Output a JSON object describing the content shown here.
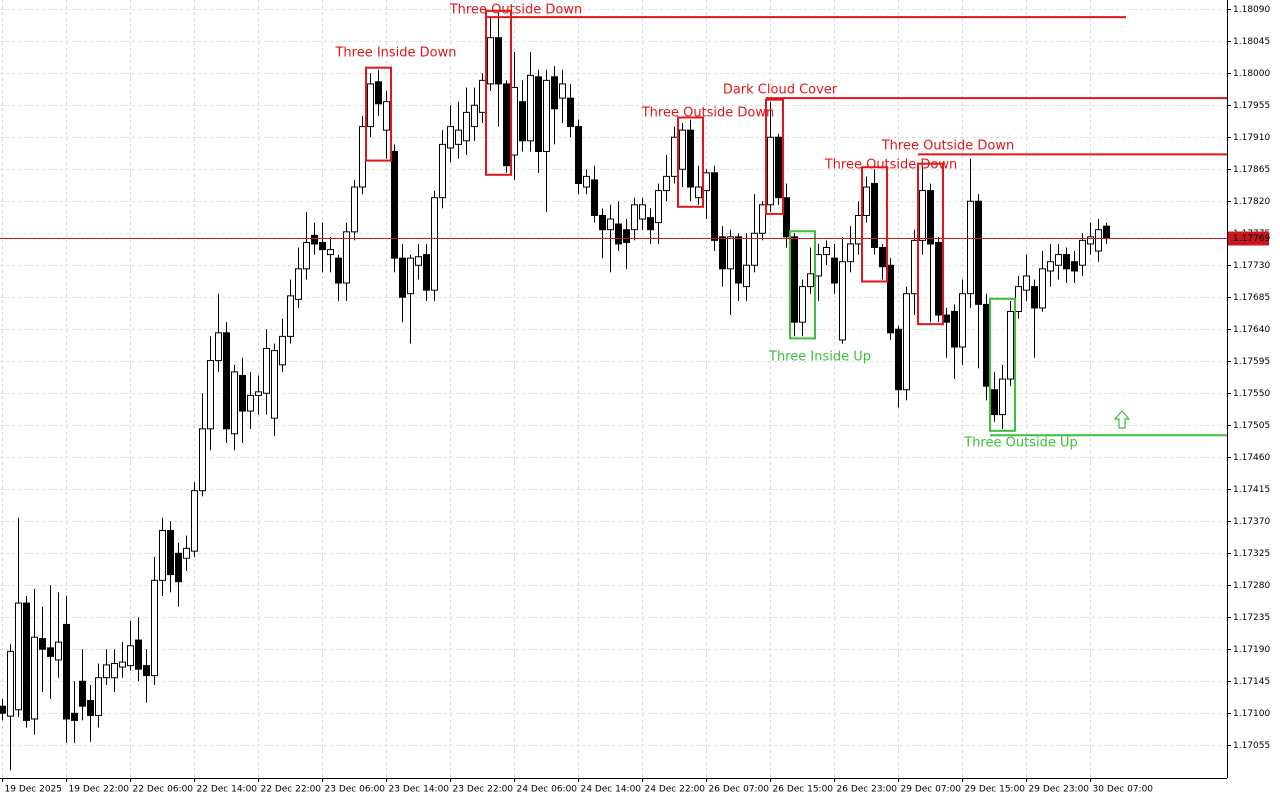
{
  "chart_data": {
    "type": "candlestick",
    "categories": [
      "19 Dec 2025",
      null,
      null,
      null,
      null,
      null,
      null,
      null,
      "19 Dec 22:00",
      null,
      null,
      null,
      null,
      null,
      null,
      null,
      "22 Dec 06:00",
      null,
      null,
      null,
      null,
      null,
      null,
      null,
      "22 Dec 14:00",
      null,
      null,
      null,
      null,
      null,
      null,
      null,
      "22 Dec 22:00",
      null,
      null,
      null,
      null,
      null,
      null,
      null,
      "23 Dec 06:00",
      null,
      null,
      null,
      null,
      null,
      null,
      null,
      "23 Dec 14:00",
      null,
      null,
      null,
      null,
      null,
      null,
      null,
      "23 Dec 22:00",
      null,
      null,
      null,
      null,
      null,
      null,
      null,
      "24 Dec 06:00",
      null,
      null,
      null,
      null,
      null,
      null,
      null,
      "24 Dec 14:00",
      null,
      null,
      null,
      null,
      null,
      null,
      null,
      "24 Dec 22:00",
      null,
      null,
      null,
      null,
      null,
      null,
      null,
      "26 Dec 07:00",
      null,
      null,
      null,
      null,
      null,
      null,
      null,
      "26 Dec 15:00",
      null,
      null,
      null,
      null,
      null,
      null,
      null,
      "26 Dec 23:00",
      null,
      null,
      null,
      null,
      null,
      null,
      null,
      "29 Dec 07:00",
      null,
      null,
      null,
      null,
      null,
      null,
      null,
      "29 Dec 15:00",
      null,
      null,
      null,
      null,
      null,
      null,
      null,
      "29 Dec 23:00",
      null,
      null,
      null,
      null,
      null,
      null,
      null,
      "30 Dec 07:00",
      null,
      null
    ],
    "open": [
      1.1711,
      1.17096,
      1.17105,
      1.17255,
      1.17092,
      1.17205,
      1.17192,
      1.17175,
      1.17225,
      1.171,
      1.17145,
      1.17118,
      1.17097,
      1.1715,
      1.1715,
      1.17165,
      1.17167,
      1.17203,
      1.17167,
      1.17153,
      1.17287,
      1.17357,
      1.17325,
      1.17318,
      1.17328,
      1.17413,
      1.175,
      1.17596,
      1.17635,
      1.17493,
      1.17575,
      1.17525,
      1.17547,
      1.1755,
      1.17515,
      1.1759,
      1.1763,
      1.17682,
      1.17725,
      1.17772,
      1.17762,
      1.17745,
      1.1774,
      1.17705,
      1.17777,
      1.1784,
      1.17925,
      1.17988,
      1.1792,
      1.1789,
      1.1774,
      1.1769,
      1.1773,
      1.17745,
      1.17695,
      1.17825,
      1.17895,
      1.179,
      1.17905,
      1.17925,
      1.17945,
      1.17985,
      1.1805,
      1.17985,
      1.17885,
      1.1796,
      1.17905,
      1.17995,
      1.1789,
      1.17995,
      1.17965,
      1.17965,
      1.17925,
      1.1784,
      1.1785,
      1.178,
      1.1778,
      1.17788,
      1.1778,
      1.1778,
      1.17795,
      1.17797,
      1.1779,
      1.17835,
      1.17855,
      1.17865,
      1.1792,
      1.17825,
      1.17835,
      1.1786,
      1.1777,
      1.17725,
      1.1777,
      1.177,
      1.1773,
      1.17775,
      1.17815,
      1.1791,
      1.17825,
      1.1777,
      1.1765,
      1.177,
      1.17715,
      1.17745,
      1.1774,
      1.17625,
      1.17735,
      1.1776,
      1.178,
      1.17845,
      1.17755,
      1.1773,
      1.1764,
      1.17555,
      1.1769,
      1.17765,
      1.17835,
      1.17762,
      1.1766,
      1.17665,
      1.17615,
      1.1769,
      1.1782,
      1.17675,
      1.17555,
      1.1752,
      1.1757,
      1.17665,
      1.17695,
      1.177,
      1.1767,
      1.17722,
      1.1773,
      1.17745,
      1.17735,
      1.1773,
      1.1776,
      1.1775,
      1.17785
    ],
    "high": [
      1.1712,
      1.17197,
      1.17375,
      1.17265,
      1.17275,
      1.1725,
      1.1728,
      1.1727,
      1.17265,
      1.17145,
      1.1719,
      1.1714,
      1.1717,
      1.1719,
      1.1719,
      1.172,
      1.1723,
      1.17235,
      1.1719,
      1.1732,
      1.17375,
      1.1737,
      1.1734,
      1.1735,
      1.17425,
      1.1755,
      1.1763,
      1.1769,
      1.1765,
      1.1759,
      1.176,
      1.1758,
      1.17575,
      1.1764,
      1.1762,
      1.17655,
      1.1771,
      1.17755,
      1.17805,
      1.1779,
      1.1779,
      1.1777,
      1.17745,
      1.1779,
      1.1785,
      1.1794,
      1.18,
      1.18005,
      1.17975,
      1.179,
      1.1776,
      1.17745,
      1.1776,
      1.1776,
      1.17835,
      1.1792,
      1.17955,
      1.1796,
      1.1798,
      1.1798,
      1.18,
      1.1808,
      1.18085,
      1.1799,
      1.1803,
      1.1799,
      1.1803,
      1.18005,
      1.18005,
      1.1801,
      1.18005,
      1.17985,
      1.17935,
      1.17865,
      1.1787,
      1.1781,
      1.17815,
      1.1782,
      1.17795,
      1.17825,
      1.17825,
      1.1781,
      1.17845,
      1.17885,
      1.17925,
      1.1793,
      1.17935,
      1.1787,
      1.17865,
      1.1787,
      1.17785,
      1.1778,
      1.17775,
      1.17775,
      1.1783,
      1.1782,
      1.1796,
      1.17915,
      1.17845,
      1.17775,
      1.1771,
      1.17755,
      1.1776,
      1.17765,
      1.1776,
      1.1777,
      1.17785,
      1.1782,
      1.17855,
      1.17865,
      1.1776,
      1.1774,
      1.17645,
      1.177,
      1.1778,
      1.1787,
      1.17845,
      1.1777,
      1.1767,
      1.17675,
      1.1771,
      1.1788,
      1.1783,
      1.1769,
      1.1758,
      1.1759,
      1.1768,
      1.17715,
      1.17745,
      1.1771,
      1.1775,
      1.1776,
      1.1776,
      1.17755,
      1.1775,
      1.17775,
      1.1779,
      1.17795,
      1.1779
    ],
    "low": [
      1.1709,
      1.1702,
      1.17095,
      1.1708,
      1.1707,
      1.1713,
      1.1712,
      1.1715,
      1.17058,
      1.17058,
      1.1709,
      1.1706,
      1.1708,
      1.1714,
      1.1713,
      1.1715,
      1.1716,
      1.17145,
      1.17115,
      1.1714,
      1.17265,
      1.1727,
      1.1725,
      1.173,
      1.1732,
      1.17405,
      1.1747,
      1.1758,
      1.1748,
      1.1747,
      1.1748,
      1.175,
      1.1752,
      1.1752,
      1.1749,
      1.1758,
      1.1762,
      1.1767,
      1.1771,
      1.17745,
      1.1772,
      1.1772,
      1.1768,
      1.1768,
      1.17765,
      1.1783,
      1.1791,
      1.1794,
      1.1788,
      1.1772,
      1.1765,
      1.1762,
      1.1771,
      1.1768,
      1.1768,
      1.1781,
      1.17875,
      1.1788,
      1.17885,
      1.17905,
      1.1793,
      1.17975,
      1.17925,
      1.1786,
      1.1785,
      1.1789,
      1.1789,
      1.1786,
      1.17805,
      1.179,
      1.1793,
      1.1791,
      1.1783,
      1.1783,
      1.1779,
      1.1774,
      1.1772,
      1.1775,
      1.17725,
      1.17765,
      1.1778,
      1.1776,
      1.1776,
      1.1782,
      1.17845,
      1.1784,
      1.1782,
      1.17815,
      1.17795,
      1.1775,
      1.177,
      1.1766,
      1.1768,
      1.1768,
      1.1772,
      1.17765,
      1.17805,
      1.17815,
      1.17755,
      1.1763,
      1.1763,
      1.1769,
      1.1768,
      1.1773,
      1.1769,
      1.1762,
      1.1772,
      1.17745,
      1.1779,
      1.17745,
      1.1771,
      1.17625,
      1.1753,
      1.1754,
      1.1766,
      1.17745,
      1.1765,
      1.1765,
      1.176,
      1.1757,
      1.1759,
      1.1767,
      1.17585,
      1.1754,
      1.1751,
      1.175,
      1.1756,
      1.17655,
      1.1768,
      1.176,
      1.17665,
      1.177,
      1.1771,
      1.17705,
      1.17705,
      1.17715,
      1.17745,
      1.17735,
      1.1776
    ],
    "close": [
      1.171,
      1.17187,
      1.17255,
      1.1709,
      1.17207,
      1.1719,
      1.1718,
      1.172,
      1.17092,
      1.1709,
      1.1711,
      1.17097,
      1.1715,
      1.17168,
      1.1717,
      1.17172,
      1.17195,
      1.17162,
      1.17153,
      1.17287,
      1.17357,
      1.17295,
      1.17285,
      1.17332,
      1.17413,
      1.175,
      1.17596,
      1.17635,
      1.175,
      1.1758,
      1.17525,
      1.17547,
      1.17552,
      1.17613,
      1.1761,
      1.1763,
      1.17687,
      1.17725,
      1.17762,
      1.1776,
      1.17752,
      1.17752,
      1.17705,
      1.17777,
      1.1784,
      1.17925,
      1.17985,
      1.17957,
      1.1796,
      1.1774,
      1.17685,
      1.1774,
      1.17742,
      1.17695,
      1.17825,
      1.179,
      1.17925,
      1.1792,
      1.17945,
      1.17955,
      1.1799,
      1.1805,
      1.17985,
      1.1787,
      1.1798,
      1.17905,
      1.17997,
      1.1789,
      1.1799,
      1.1795,
      1.17985,
      1.17925,
      1.17845,
      1.17855,
      1.178,
      1.1778,
      1.17795,
      1.1776,
      1.17762,
      1.17815,
      1.17815,
      1.1778,
      1.17835,
      1.17855,
      1.1791,
      1.1792,
      1.1784,
      1.1784,
      1.1786,
      1.17765,
      1.17725,
      1.1777,
      1.17705,
      1.1773,
      1.17775,
      1.17815,
      1.1791,
      1.17825,
      1.1777,
      1.1765,
      1.177,
      1.17718,
      1.17745,
      1.17755,
      1.17705,
      1.17735,
      1.1776,
      1.178,
      1.1784,
      1.17755,
      1.17728,
      1.17635,
      1.17555,
      1.1769,
      1.17765,
      1.17835,
      1.1776,
      1.1766,
      1.1765,
      1.17615,
      1.1769,
      1.1782,
      1.17675,
      1.1756,
      1.1752,
      1.1757,
      1.17665,
      1.177,
      1.17715,
      1.1767,
      1.17725,
      1.17735,
      1.17745,
      1.17725,
      1.17722,
      1.17765,
      1.1777,
      1.1778,
      1.17769
    ],
    "up_color": "#ffffff",
    "down_color": "#000000",
    "ylim": [
      1.17009,
      1.18103
    ],
    "yticks": [
      {
        "value": 1.1809,
        "label": "1.18090"
      },
      1.18045,
      {
        "value": 1.18,
        "label": "1.18000"
      },
      1.17955,
      {
        "value": 1.1791,
        "label": "1.17910"
      },
      1.17865,
      {
        "value": 1.1782,
        "label": "1.17820"
      },
      1.17775,
      {
        "value": 1.1773,
        "label": "1.17730"
      },
      1.17685,
      {
        "value": 1.1764,
        "label": "1.17640"
      },
      1.17595,
      {
        "value": 1.1755,
        "label": "1.17550"
      },
      1.17505,
      {
        "value": 1.1746,
        "label": "1.17460"
      },
      1.17415,
      {
        "value": 1.1737,
        "label": "1.17370"
      },
      1.17325,
      {
        "value": 1.1728,
        "label": "1.17280"
      },
      1.17235,
      {
        "value": 1.1719,
        "label": "1.17190"
      },
      1.17145,
      {
        "value": 1.171,
        "label": "1.17100"
      },
      1.17055
    ],
    "grid": true,
    "current_price": 1.17769,
    "current_price_color": "#c8181e",
    "annotations": [
      {
        "label": "Three Inside Down",
        "color": "#e0161b"
      },
      {
        "label": "Three Outside Down",
        "color": "#e0161b",
        "level": 1.18079
      },
      {
        "label": "Three Outside Down",
        "color": "#e0161b"
      },
      {
        "label": "Dark Cloud Cover",
        "color": "#e0161b",
        "level": 1.17965
      },
      {
        "label": "Three Inside Up",
        "color": "#3cbf3c"
      },
      {
        "label": "Three Outside Down",
        "color": "#e0161b"
      },
      {
        "label": "Three Outside Down",
        "color": "#e0161b",
        "level": 1.17886
      },
      {
        "label": "Three Outside Up",
        "color": "#3cbf3c",
        "level": 1.17491
      }
    ]
  }
}
